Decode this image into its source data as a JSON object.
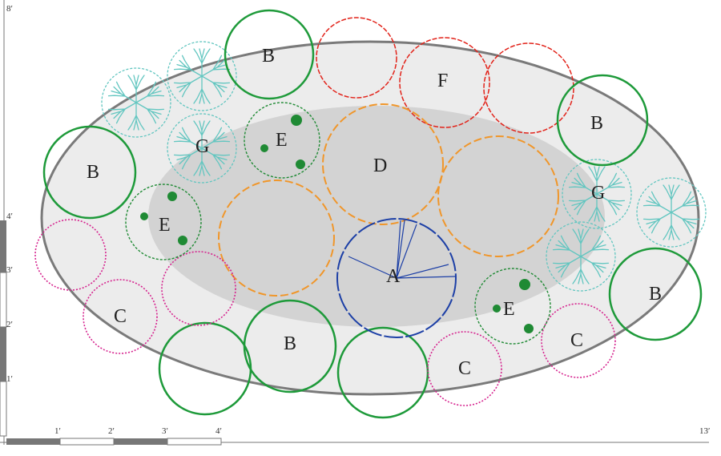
{
  "scale": {
    "vertical_top_label": "8′",
    "vertical_mid_label": "4′",
    "vertical_labels": [
      "3′",
      "2′",
      "1′"
    ],
    "horizontal_labels": [
      "1′",
      "2′",
      "3′",
      "4′"
    ],
    "horizontal_end_label": "13′"
  },
  "plants": [
    {
      "label": "A",
      "type": "A",
      "color": "#1c3fa6"
    },
    {
      "label": "B",
      "type": "B",
      "color": "#1e9a3a"
    },
    {
      "label": "C",
      "type": "C",
      "color": "#d6248f"
    },
    {
      "label": "D",
      "type": "D",
      "color": "#f0962a"
    },
    {
      "label": "E",
      "type": "E",
      "color": "#1f8a34"
    },
    {
      "label": "F",
      "type": "F",
      "color": "#e2231a"
    },
    {
      "label": "G",
      "type": "G",
      "color": "#62c6c0"
    }
  ],
  "colors": {
    "bed_fill": "#ececec",
    "bed_outline": "#7a7a7a",
    "inner_fill": "#cfcfcf",
    "scale_dark": "#777777"
  }
}
